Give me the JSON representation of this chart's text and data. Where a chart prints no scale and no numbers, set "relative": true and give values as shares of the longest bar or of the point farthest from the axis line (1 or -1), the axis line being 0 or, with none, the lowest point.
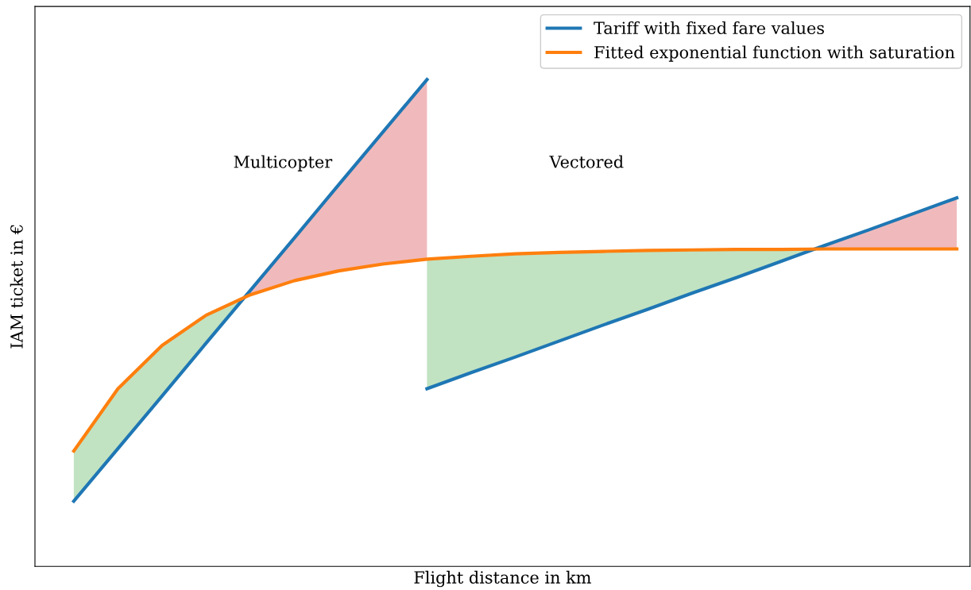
{
  "chart_data": {
    "type": "line",
    "relative": true,
    "xlabel": "Flight distance in km",
    "ylabel": "IAM ticket in €",
    "legend": "top right",
    "marker": "none",
    "line_style": "solid",
    "categories": [
      null,
      null,
      null,
      null,
      null,
      null,
      null,
      null,
      null,
      null,
      null,
      null,
      null,
      null,
      null,
      null,
      null,
      null,
      null,
      null,
      null
    ],
    "annotations": [
      "Multicopter",
      "Vectored"
    ],
    "series": [
      {
        "name": "Tariff with fixed fare values",
        "color": "#1f77b4",
        "values": [
          0.134,
          0.242,
          0.35,
          0.459,
          0.567,
          0.675,
          0.784,
          0.892,
          1.0,
          null,
          null,
          null,
          null,
          null,
          null,
          null,
          null,
          null,
          null,
          null,
          null
        ]
      },
      {
        "color": "#1f77b4",
        "values": [
          null,
          null,
          null,
          null,
          null,
          null,
          null,
          null,
          0.365,
          0.398,
          0.43,
          0.463,
          0.496,
          0.528,
          0.561,
          0.593,
          0.626,
          0.659,
          0.691,
          0.724,
          0.757
        ]
      },
      {
        "name": "Fitted exponential function with saturation",
        "color": "#ff7f0e",
        "values": [
          0.237,
          0.365,
          0.454,
          0.516,
          0.558,
          0.587,
          0.607,
          0.621,
          0.631,
          0.637,
          0.642,
          0.645,
          0.647,
          0.649,
          0.65,
          0.651,
          0.651,
          0.652,
          0.652,
          0.652,
          0.652
        ]
      }
    ]
  }
}
